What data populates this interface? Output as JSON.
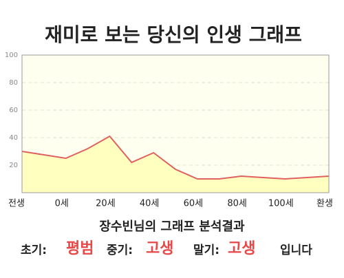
{
  "chart_data": {
    "type": "area",
    "title": "재미로 보는 당신의 인생 그래프",
    "categories": [
      "전생",
      null,
      "0세",
      null,
      "20세",
      null,
      "40세",
      null,
      "60세",
      null,
      "80세",
      null,
      "100세",
      null,
      "환생"
    ],
    "values": [
      30,
      27.5,
      25,
      32,
      41,
      22,
      29,
      17,
      10,
      10,
      12,
      11,
      10,
      11,
      12
    ],
    "color": "#e06060",
    "fill": "#ffffc0",
    "background": "#fffff0",
    "ylim": [
      0,
      100
    ],
    "yticks": [
      20,
      40,
      60,
      80,
      100
    ],
    "grid": true
  },
  "analysis": {
    "heading": "장수빈님의 그래프 분석결과",
    "items": [
      {
        "label": "초기:",
        "result": "평범"
      },
      {
        "label": "중기:",
        "result": "고생"
      },
      {
        "label": "말기:",
        "result": "고생"
      }
    ],
    "ending": "입니다"
  }
}
